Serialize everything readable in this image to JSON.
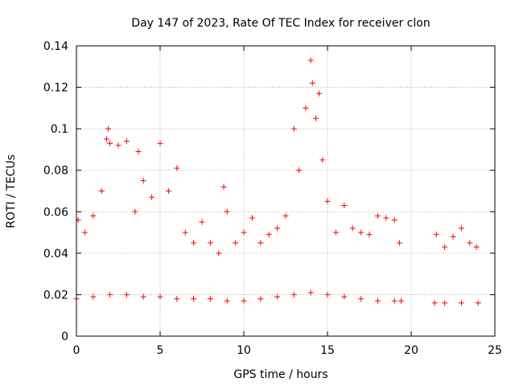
{
  "chart_data": {
    "type": "scatter",
    "title": "Day 147 of 2023, Rate Of TEC Index for receiver clon",
    "xlabel": "GPS time / hours",
    "ylabel": "ROTI / TECUs",
    "xlim": [
      0,
      25
    ],
    "ylim": [
      0,
      0.14
    ],
    "xticks": [
      0,
      5,
      10,
      15,
      20,
      25
    ],
    "xtick_labels": [
      "0",
      "5",
      "10",
      "15",
      "20",
      "25"
    ],
    "yticks": [
      0,
      0.02,
      0.04,
      0.06,
      0.08,
      0.1,
      0.12,
      0.14
    ],
    "ytick_labels": [
      "0",
      "0.02",
      "0.04",
      "0.06",
      "0.08",
      "0.1",
      "0.12",
      "0.14"
    ],
    "grid": true,
    "marker": "+",
    "color": "#ff0000",
    "data_gap_hours": [
      19.5,
      21.3
    ],
    "observed_extent": {
      "x_min": 0.0,
      "x_max": 24.0,
      "y_max": 0.133
    },
    "series": [
      {
        "x": [
          0.1,
          0.5,
          1.0,
          1.5,
          1.8,
          1.9,
          2.0,
          2.5,
          3.0,
          3.5,
          3.7,
          4.0,
          4.5,
          5.0,
          5.5,
          6.0,
          6.5,
          7.0,
          7.5,
          8.0,
          8.5,
          8.8,
          9.0,
          9.5,
          10.0,
          10.5,
          11.0,
          11.5,
          12.0,
          12.5,
          13.0,
          13.3,
          13.7,
          14.0,
          14.1,
          14.3,
          14.5,
          14.7,
          15.0,
          15.5,
          16.0,
          16.5,
          17.0,
          17.5,
          18.0,
          18.5,
          19.0,
          19.3,
          21.5,
          22.0,
          22.5,
          23.0,
          23.5,
          23.9
        ],
        "y": [
          0.056,
          0.05,
          0.058,
          0.07,
          0.095,
          0.1,
          0.093,
          0.092,
          0.094,
          0.06,
          0.089,
          0.075,
          0.067,
          0.093,
          0.07,
          0.081,
          0.05,
          0.045,
          0.055,
          0.045,
          0.04,
          0.072,
          0.06,
          0.045,
          0.05,
          0.057,
          0.045,
          0.049,
          0.052,
          0.058,
          0.1,
          0.08,
          0.11,
          0.133,
          0.122,
          0.105,
          0.117,
          0.085,
          0.065,
          0.05,
          0.063,
          0.052,
          0.05,
          0.049,
          0.058,
          0.057,
          0.056,
          0.045,
          0.049,
          0.043,
          0.048,
          0.052,
          0.045,
          0.043
        ]
      },
      {
        "x": [
          0.0,
          1.0,
          2.0,
          3.0,
          4.0,
          5.0,
          6.0,
          7.0,
          8.0,
          9.0,
          10.0,
          11.0,
          12.0,
          13.0,
          14.0,
          15.0,
          16.0,
          17.0,
          18.0,
          19.0,
          19.4,
          21.4,
          22.0,
          23.0,
          24.0
        ],
        "y": [
          0.018,
          0.019,
          0.02,
          0.02,
          0.019,
          0.019,
          0.018,
          0.018,
          0.018,
          0.017,
          0.017,
          0.018,
          0.019,
          0.02,
          0.021,
          0.02,
          0.019,
          0.018,
          0.017,
          0.017,
          0.017,
          0.016,
          0.016,
          0.016,
          0.016
        ]
      }
    ]
  }
}
